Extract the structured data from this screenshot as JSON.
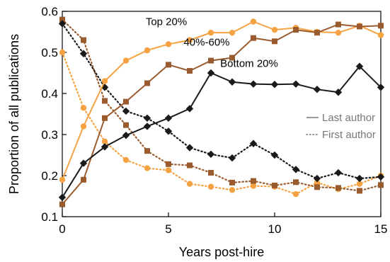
{
  "chart_data": {
    "type": "line",
    "xlabel": "Years post-hire",
    "ylabel": "Proportion of all publications",
    "xlim": [
      0,
      15
    ],
    "ylim": [
      0.1,
      0.6
    ],
    "x_ticks": [
      0,
      5,
      10,
      15
    ],
    "x_tick_labels": [
      "0",
      "5",
      "10",
      "15"
    ],
    "y_ticks": [
      0.1,
      0.2,
      0.3,
      0.4,
      0.5,
      0.6
    ],
    "y_tick_labels": [
      "0.1",
      "0.2",
      "0.3",
      "0.4",
      "0.5",
      "0.6"
    ],
    "grid": false,
    "x": [
      0,
      1,
      2,
      3,
      4,
      5,
      6,
      7,
      8,
      9,
      10,
      11,
      12,
      13,
      14,
      15
    ],
    "series": [
      {
        "name": "Top 20%",
        "role": "Last author",
        "color": "#f5a342",
        "marker": "circle",
        "line_style": "solid",
        "values": [
          0.19,
          0.32,
          0.43,
          0.48,
          0.505,
          0.52,
          0.53,
          0.548,
          0.548,
          0.575,
          0.555,
          0.56,
          0.55,
          0.548,
          0.565,
          0.542
        ]
      },
      {
        "name": "40%-60%",
        "role": "Last author",
        "color": "#9a5b2e",
        "marker": "square",
        "line_style": "solid",
        "values": [
          0.13,
          0.19,
          0.34,
          0.38,
          0.425,
          0.47,
          0.455,
          0.48,
          0.487,
          0.535,
          0.527,
          0.555,
          0.548,
          0.568,
          0.563,
          0.565
        ]
      },
      {
        "name": "Bottom 20%",
        "role": "Last author",
        "color": "#1a1a1a",
        "marker": "diamond",
        "line_style": "solid",
        "values": [
          0.147,
          0.23,
          0.27,
          0.298,
          0.32,
          0.34,
          0.363,
          0.45,
          0.428,
          0.423,
          0.422,
          0.423,
          0.41,
          0.403,
          0.466,
          0.415
        ]
      },
      {
        "name": "Top 20%",
        "role": "First author",
        "color": "#f5a342",
        "marker": "circle",
        "line_style": "dotted",
        "values": [
          0.5,
          0.365,
          0.283,
          0.238,
          0.218,
          0.213,
          0.18,
          0.173,
          0.165,
          0.175,
          0.173,
          0.155,
          0.183,
          0.167,
          0.18,
          0.2
        ]
      },
      {
        "name": "40%-60%",
        "role": "First author",
        "color": "#9a5b2e",
        "marker": "square",
        "line_style": "dotted",
        "values": [
          0.58,
          0.53,
          0.382,
          0.323,
          0.26,
          0.228,
          0.225,
          0.207,
          0.183,
          0.187,
          0.176,
          0.184,
          0.172,
          0.17,
          0.163,
          0.177
        ]
      },
      {
        "name": "Bottom 20%",
        "role": "First author",
        "color": "#1a1a1a",
        "marker": "diamond",
        "line_style": "dotted",
        "values": [
          0.57,
          0.497,
          0.415,
          0.357,
          0.34,
          0.308,
          0.268,
          0.252,
          0.243,
          0.278,
          0.25,
          0.215,
          0.193,
          0.207,
          0.193,
          0.197
        ]
      }
    ],
    "annotations": [
      {
        "text": "Top 20%",
        "at_x": 4.9,
        "at_y": 0.566
      },
      {
        "text": "40%-60%",
        "at_x": 6.8,
        "at_y": 0.516
      },
      {
        "text": "Bottom 20%",
        "at_x": 8.8,
        "at_y": 0.465
      }
    ],
    "legend": {
      "placement": "right-middle",
      "entries": [
        {
          "label": "Last author",
          "line_style": "solid",
          "color": "#777777"
        },
        {
          "label": "First author",
          "line_style": "dotted",
          "color": "#777777"
        }
      ]
    }
  }
}
